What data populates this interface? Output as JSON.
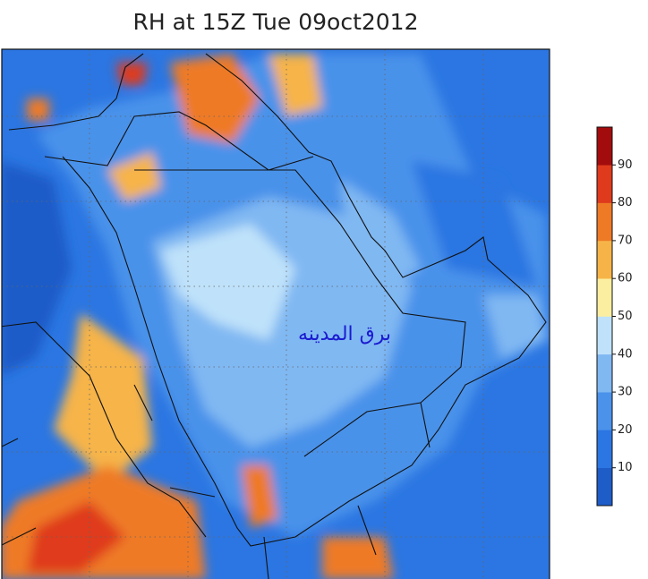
{
  "title": "RH at 15Z Tue 09oct2012",
  "watermark": "برق المدينه",
  "colorbar": {
    "range": [
      0,
      100
    ],
    "ticks": [
      10,
      20,
      30,
      40,
      50,
      60,
      70,
      80,
      90
    ],
    "colors": [
      "#1e5cc8",
      "#2b76e2",
      "#4a92ea",
      "#80b8f2",
      "#bfe2fa",
      "#fbeea0",
      "#f6b448",
      "#ee7a26",
      "#df3a1c",
      "#a30c0c"
    ]
  }
}
